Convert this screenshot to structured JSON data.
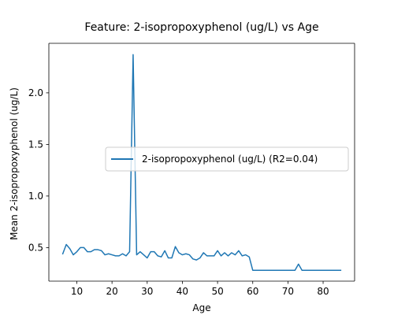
{
  "chart_data": {
    "type": "line",
    "title": "Feature: 2-isopropoxyphenol (ug/L) vs Age",
    "xlabel": "Age",
    "ylabel": "Mean 2-isopropoxyphenol (ug/L)",
    "xlim": [
      2.05,
      88.95
    ],
    "ylim": [
      0.175,
      2.48
    ],
    "xticks": [
      10,
      20,
      30,
      40,
      50,
      60,
      70,
      80
    ],
    "xtick_labels": [
      "10",
      "20",
      "30",
      "40",
      "50",
      "60",
      "70",
      "80"
    ],
    "yticks": [
      0.5,
      1.0,
      1.5,
      2.0
    ],
    "ytick_labels": [
      "0.5",
      "1.0",
      "1.5",
      "2.0"
    ],
    "grid": false,
    "legend_position": "center-right",
    "series": [
      {
        "name": "2-isopropoxyphenol (ug/L) (R2=0.04)",
        "color": "#1f77b4",
        "x": [
          6,
          7,
          8,
          9,
          10,
          11,
          12,
          13,
          14,
          15,
          16,
          17,
          18,
          19,
          20,
          21,
          22,
          23,
          24,
          25,
          26,
          27,
          28,
          29,
          30,
          31,
          32,
          33,
          34,
          35,
          36,
          37,
          38,
          39,
          40,
          41,
          42,
          43,
          44,
          45,
          46,
          47,
          48,
          49,
          50,
          51,
          52,
          53,
          54,
          55,
          56,
          57,
          58,
          59,
          60,
          61,
          62,
          63,
          64,
          65,
          66,
          67,
          68,
          69,
          70,
          71,
          72,
          73,
          74,
          75,
          76,
          77,
          78,
          79,
          80,
          81,
          82,
          83,
          84,
          85
        ],
        "y": [
          0.44,
          0.53,
          0.49,
          0.43,
          0.46,
          0.5,
          0.5,
          0.46,
          0.46,
          0.48,
          0.48,
          0.47,
          0.43,
          0.44,
          0.43,
          0.42,
          0.42,
          0.44,
          0.42,
          0.46,
          2.37,
          0.43,
          0.46,
          0.43,
          0.4,
          0.46,
          0.46,
          0.42,
          0.41,
          0.47,
          0.4,
          0.4,
          0.51,
          0.45,
          0.43,
          0.44,
          0.43,
          0.39,
          0.38,
          0.4,
          0.45,
          0.42,
          0.42,
          0.42,
          0.47,
          0.42,
          0.45,
          0.42,
          0.45,
          0.43,
          0.47,
          0.42,
          0.43,
          0.41,
          0.28,
          0.28,
          0.28,
          0.28,
          0.28,
          0.28,
          0.28,
          0.28,
          0.28,
          0.28,
          0.28,
          0.28,
          0.28,
          0.34,
          0.28,
          0.28,
          0.28,
          0.28,
          0.28,
          0.28,
          0.28,
          0.28,
          0.28,
          0.28,
          0.28,
          0.28
        ]
      }
    ]
  }
}
